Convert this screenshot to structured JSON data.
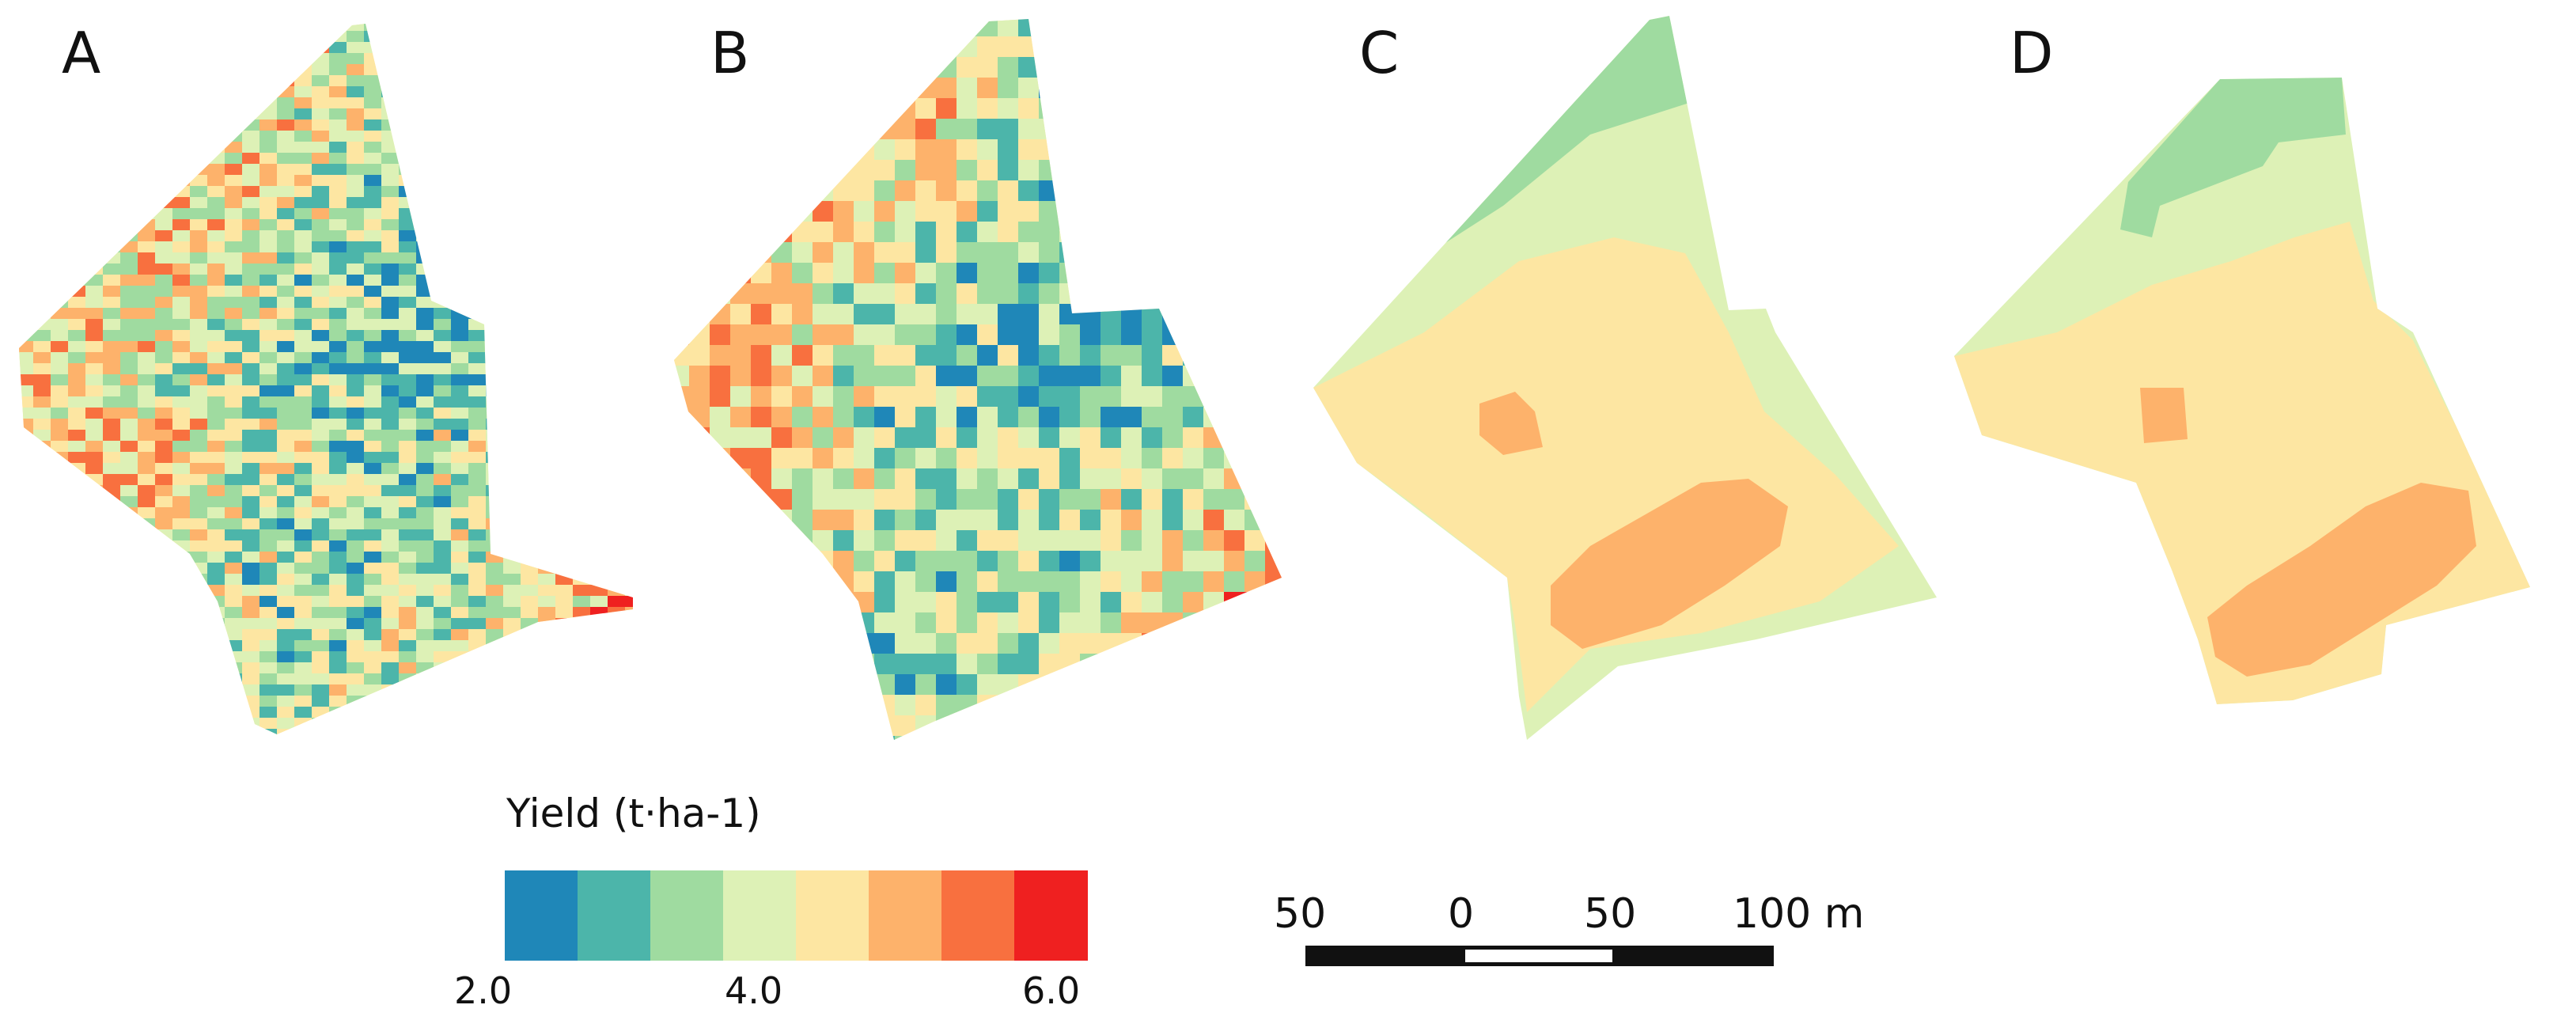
{
  "panels": [
    {
      "label": "A"
    },
    {
      "label": "B"
    },
    {
      "label": "C"
    },
    {
      "label": "D"
    }
  ],
  "legend": {
    "title": "Yield (t·ha-1)",
    "classes": [
      {
        "from": 2.0,
        "to": 2.5,
        "color": "#1f87b8"
      },
      {
        "from": 2.5,
        "to": 3.0,
        "color": "#4cb5aa"
      },
      {
        "from": 3.0,
        "to": 3.5,
        "color": "#9fdba0"
      },
      {
        "from": 3.5,
        "to": 4.0,
        "color": "#ddf1b6"
      },
      {
        "from": 4.0,
        "to": 4.5,
        "color": "#fde6a2"
      },
      {
        "from": 4.5,
        "to": 5.0,
        "color": "#fdb26b"
      },
      {
        "from": 5.0,
        "to": 5.5,
        "color": "#f8703f"
      },
      {
        "from": 5.5,
        "to": 6.0,
        "color": "#ef2020"
      }
    ],
    "tick_min": "2.0",
    "tick_mid": "4.0",
    "tick_max": "6.0"
  },
  "scale_bar": {
    "labels": [
      "50",
      "0",
      "50",
      "100 m"
    ]
  }
}
